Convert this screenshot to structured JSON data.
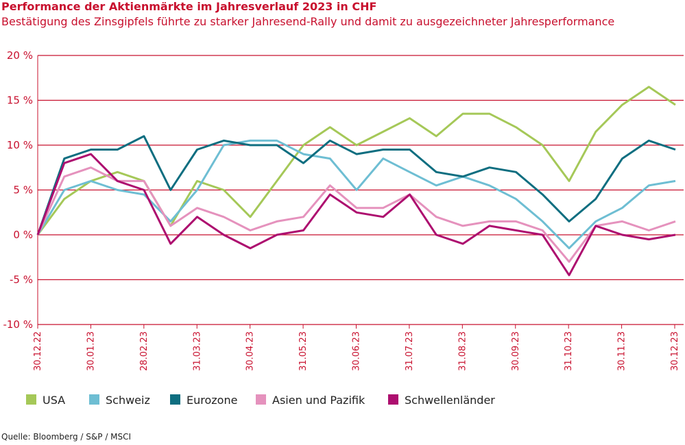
{
  "title": "Performance der Aktienmärkte im Jahresverlauf 2023 in CHF",
  "subtitle": "Bestätigung des Zinsgipfels führte zu starker Jahresend-Rally und damit zu ausgezeichneter Jahresperformance",
  "source": "Quelle: Bloomberg / S&P / MSCI",
  "colors": {
    "axis": "#c8102e",
    "grid": "#c8102e"
  },
  "chart_data": {
    "type": "line",
    "title": "Performance der Aktienmärkte im Jahresverlauf 2023 in CHF",
    "xlabel": "",
    "ylabel": "",
    "ylim": [
      -10,
      20
    ],
    "y_ticks": [
      20,
      15,
      10,
      5,
      0,
      -5,
      -10
    ],
    "y_tick_labels": [
      "20 %",
      "15 %",
      "10 %",
      "5 %",
      "0 %",
      "-5 %",
      "-10 %"
    ],
    "x_tick_labels": [
      "30.12.22",
      "30.01.23",
      "28.02.23",
      "31.03.23",
      "30.04.23",
      "31.05.23",
      "30.06.23",
      "31.07.23",
      "31.08.23",
      "30.09.23",
      "31.10.23",
      "30.11.23",
      "30.12.23"
    ],
    "grid": "horizontal",
    "legend_position": "bottom",
    "x": [
      "30.12.22",
      "15.01.23",
      "30.01.23",
      "15.02.23",
      "28.02.23",
      "15.03.23",
      "31.03.23",
      "15.04.23",
      "30.04.23",
      "15.05.23",
      "31.05.23",
      "15.06.23",
      "30.06.23",
      "15.07.23",
      "31.07.23",
      "15.08.23",
      "31.08.23",
      "15.09.23",
      "30.09.23",
      "15.10.23",
      "31.10.23",
      "15.11.23",
      "30.11.23",
      "15.12.23",
      "30.12.23"
    ],
    "series": [
      {
        "name": "USA",
        "color": "#a5c858",
        "values": [
          0,
          4,
          6,
          7,
          6,
          1,
          6,
          5,
          2,
          6,
          10,
          12,
          10,
          11.5,
          13,
          11,
          13.5,
          13.5,
          12,
          10,
          6,
          11.5,
          14.5,
          16.5,
          14.5
        ]
      },
      {
        "name": "Schweiz",
        "color": "#6ebed3",
        "values": [
          0,
          5,
          6,
          5,
          4.5,
          1.5,
          5,
          10,
          10.5,
          10.5,
          9,
          8.5,
          5,
          8.5,
          7,
          5.5,
          6.5,
          5.5,
          4,
          1.5,
          -1.5,
          1.5,
          3,
          5.5,
          6
        ]
      },
      {
        "name": "Eurozone",
        "color": "#0e6e80",
        "values": [
          0,
          8.5,
          9.5,
          9.5,
          11,
          5,
          9.5,
          10.5,
          10,
          10,
          8,
          10.5,
          9,
          9.5,
          9.5,
          7,
          6.5,
          7.5,
          7,
          4.5,
          1.5,
          4,
          8.5,
          10.5,
          9.5
        ]
      },
      {
        "name": "Asien und Pazifik",
        "color": "#e592bd",
        "values": [
          0,
          6.5,
          7.5,
          6,
          6,
          1,
          3,
          2,
          0.5,
          1.5,
          2,
          5.5,
          3,
          3,
          4.5,
          2,
          1,
          1.5,
          1.5,
          0.5,
          -3,
          1,
          1.5,
          0.5,
          1.5
        ]
      },
      {
        "name": "Schwellenländer",
        "color": "#ad0e6f",
        "values": [
          0,
          8,
          9,
          6,
          5,
          -1,
          2,
          0,
          -1.5,
          0,
          0.5,
          4.5,
          2.5,
          2,
          4.5,
          0,
          -1,
          1,
          0.5,
          0,
          -4.5,
          1,
          0,
          -0.5,
          0
        ]
      }
    ]
  }
}
